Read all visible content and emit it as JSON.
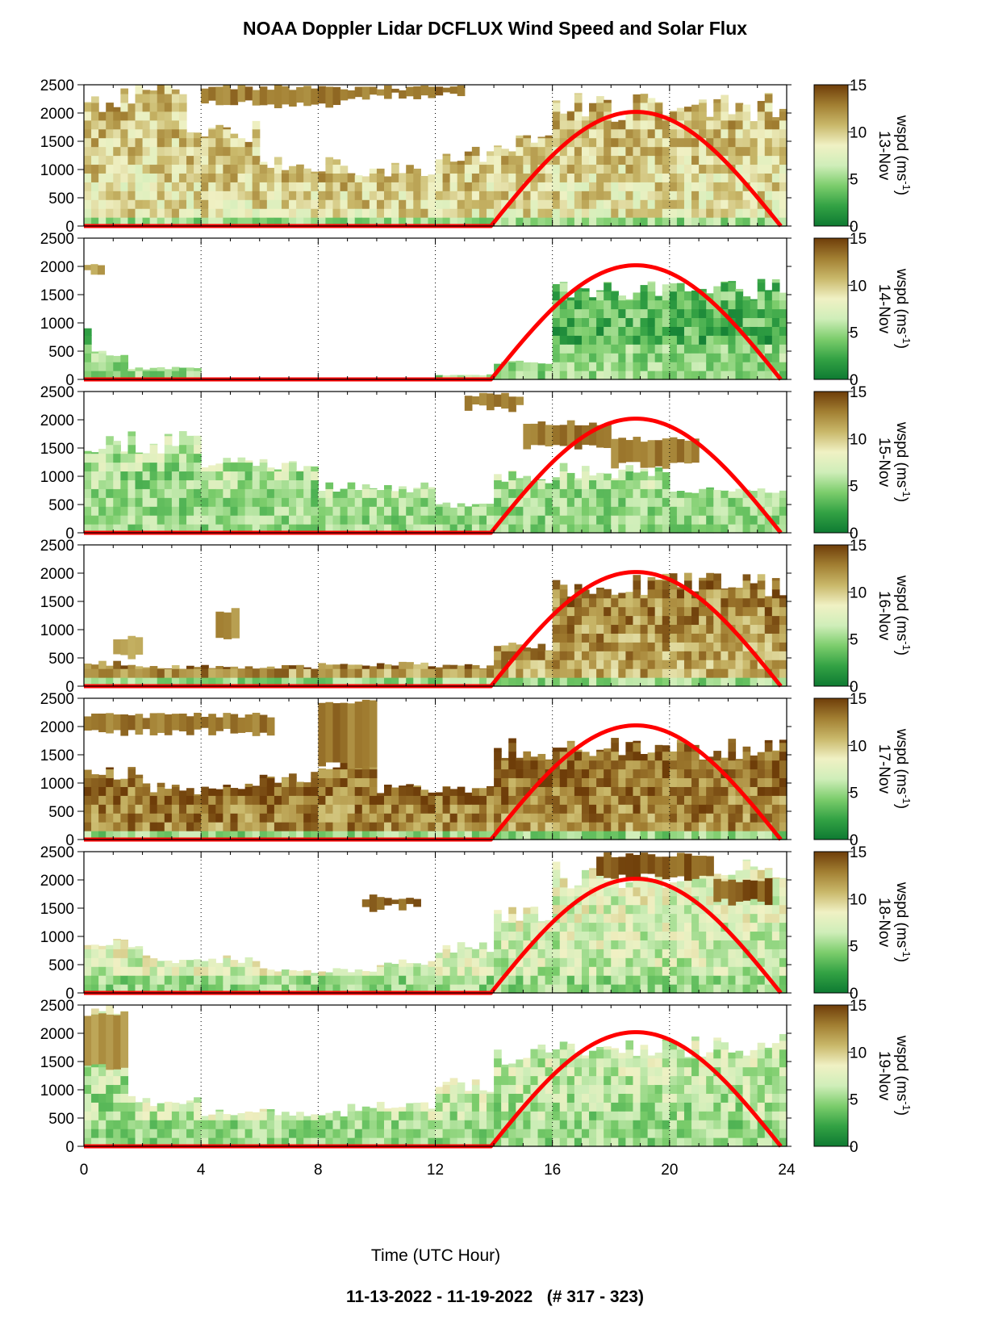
{
  "title": "NOAA Doppler Lidar DCFLUX Wind Speed and Solar Flux",
  "footer": "11-13-2022 - 11-19-2022   (# 317 - 323)",
  "colors": {
    "colormap": [
      "#0e7a32",
      "#33a244",
      "#7ccd6c",
      "#cfeeb9",
      "#f0f1c4",
      "#c9b86a",
      "#a27f32",
      "#6e3d09"
    ],
    "solar_flux_line": "#ff0000",
    "gridline": "#000000"
  },
  "chart_data": {
    "type": "heatmap",
    "xlabel": "Time (UTC Hour)",
    "xlim": [
      0,
      24
    ],
    "xticks": [
      0,
      4,
      8,
      12,
      16,
      20,
      24
    ],
    "ylim": [
      0,
      2500
    ],
    "yticks": [
      0,
      500,
      1000,
      1500,
      2000,
      2500
    ],
    "colorbar": {
      "label": "wspd (ms",
      "label_superscript": "-1",
      "label_end": ")",
      "ticks": [
        0,
        5,
        10,
        15
      ],
      "range": [
        0,
        15
      ]
    },
    "grid": "dotted vertical lines at x ticks",
    "solar_flux": {
      "sunrise_hour": 13.9,
      "peak_hour": 18.75,
      "sunset_hour": 23.8,
      "peak_height": 2020
    },
    "panels": [
      {
        "date": "13-Nov",
        "coverage": [
          [
            0,
            1.8,
            2200
          ],
          [
            1.8,
            3.4,
            2500
          ],
          [
            3.4,
            6.0,
            1700
          ],
          [
            6.0,
            9.0,
            1100
          ],
          [
            9.0,
            12.0,
            1000
          ],
          [
            12.0,
            14.0,
            1250
          ],
          [
            14.0,
            16.0,
            1450
          ],
          [
            16.0,
            24.0,
            2100
          ]
        ],
        "upper_band": [
          [
            4.0,
            9.0,
            2150,
            2500
          ],
          [
            9.0,
            13.0,
            2300,
            2500
          ]
        ],
        "low_speed_max": 300,
        "mid_speed": 9,
        "upper_speed": 13
      },
      {
        "date": "14-Nov",
        "coverage": [
          [
            0,
            0.3,
            900
          ],
          [
            0.3,
            1.5,
            450
          ],
          [
            1.5,
            4.0,
            200
          ],
          [
            12.0,
            14.0,
            80
          ],
          [
            14.0,
            16.0,
            300
          ],
          [
            16.0,
            24.0,
            1620
          ]
        ],
        "upper_band": [
          [
            0,
            0.7,
            1900,
            2100
          ]
        ],
        "low_speed_max": 1600,
        "mid_speed": 2,
        "upper_speed": 12
      },
      {
        "date": "15-Nov",
        "coverage": [
          [
            0,
            4.0,
            1600
          ],
          [
            4.0,
            8.0,
            1250
          ],
          [
            8.0,
            12.0,
            800
          ],
          [
            12.0,
            14.0,
            500
          ],
          [
            14.0,
            16.0,
            1000
          ],
          [
            16.0,
            20.0,
            1100
          ],
          [
            20.0,
            24.0,
            750
          ]
        ],
        "upper_band": [
          [
            13.0,
            15.0,
            2200,
            2500
          ],
          [
            15.0,
            18.0,
            1500,
            2000
          ],
          [
            18.0,
            21.0,
            1200,
            1700
          ]
        ],
        "low_speed_max": 1500,
        "mid_speed": 4,
        "upper_speed": 13
      },
      {
        "date": "16-Nov",
        "coverage": [
          [
            0,
            2.0,
            400
          ],
          [
            2.0,
            8.0,
            350
          ],
          [
            8.0,
            12.0,
            400
          ],
          [
            12.0,
            14.0,
            350
          ],
          [
            14.0,
            16.0,
            700
          ],
          [
            16.0,
            24.0,
            1800
          ]
        ],
        "upper_band": [
          [
            1.0,
            2.0,
            500,
            900
          ],
          [
            4.5,
            5.3,
            800,
            1400
          ]
        ],
        "low_speed_max": 400,
        "mid_speed": 11,
        "upper_speed": 12
      },
      {
        "date": "17-Nov",
        "coverage": [
          [
            0,
            2.0,
            1200
          ],
          [
            2.0,
            6.0,
            900
          ],
          [
            6.0,
            8.0,
            1100
          ],
          [
            8.0,
            10.0,
            1400
          ],
          [
            10.0,
            12.0,
            900
          ],
          [
            12.0,
            14.0,
            900
          ],
          [
            14.0,
            24.0,
            1600
          ]
        ],
        "upper_band": [
          [
            0,
            6.5,
            1900,
            2250
          ],
          [
            8.0,
            10.0,
            1300,
            2500
          ]
        ],
        "low_speed_max": 350,
        "mid_speed": 12,
        "upper_speed": 13
      },
      {
        "date": "18-Nov",
        "coverage": [
          [
            0,
            2.0,
            900
          ],
          [
            2.0,
            6.0,
            600
          ],
          [
            6.0,
            10.0,
            400
          ],
          [
            10.0,
            12.0,
            550
          ],
          [
            12.0,
            14.0,
            800
          ],
          [
            14.0,
            16.0,
            1400
          ],
          [
            16.0,
            24.0,
            2100
          ]
        ],
        "upper_band": [
          [
            9.5,
            11.5,
            1500,
            1750
          ],
          [
            17.5,
            21.5,
            2050,
            2500
          ],
          [
            21.5,
            23.5,
            1600,
            2050
          ]
        ],
        "low_speed_max": 500,
        "mid_speed": 6,
        "upper_speed": 14
      },
      {
        "date": "19-Nov",
        "coverage": [
          [
            0,
            1.5,
            2400
          ],
          [
            1.5,
            4.0,
            800
          ],
          [
            4.0,
            9.0,
            600
          ],
          [
            9.0,
            12.0,
            700
          ],
          [
            12.0,
            14.0,
            1100
          ],
          [
            14.0,
            16.0,
            1650
          ],
          [
            16.0,
            24.0,
            1800
          ]
        ],
        "upper_band": [
          [
            0,
            1.5,
            1400,
            2400
          ]
        ],
        "low_speed_max": 900,
        "mid_speed": 5,
        "upper_speed": 12
      }
    ]
  }
}
